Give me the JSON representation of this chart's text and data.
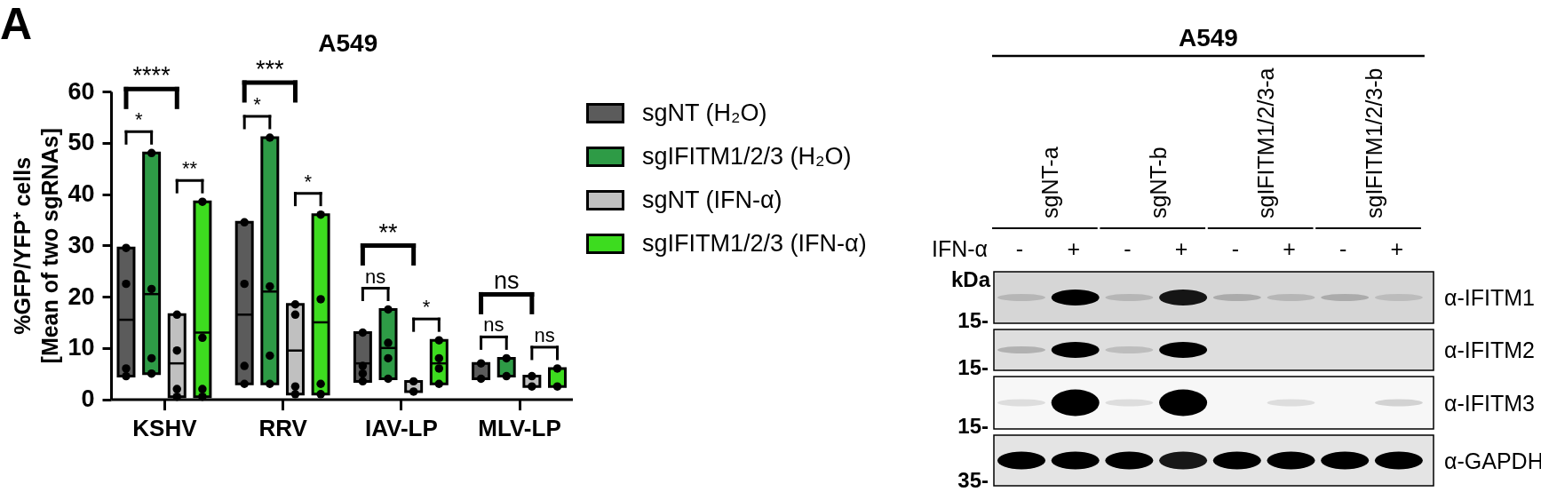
{
  "chart_data": [
    {
      "type": "box",
      "title": "A549",
      "ylabel": "%GFP/YFP⁺ cells\n[Mean of two sgRNAs]",
      "categories": [
        "KSHV",
        "RRV",
        "IAV-LP",
        "MLV-LP"
      ],
      "ylim": [
        0,
        60
      ],
      "yticks": [
        0,
        10,
        20,
        30,
        40,
        50,
        60
      ],
      "legend": "right",
      "marker": "circle",
      "series": [
        {
          "name": "sgNT (H₂O)",
          "color": "#5b5b5b",
          "boxes": [
            {
              "low": 4.5,
              "q1": 4.5,
              "median": null,
              "q3": 29.5,
              "high": 29.5,
              "mean": 15.5
            },
            {
              "low": 3,
              "q1": 3,
              "median": null,
              "q3": 34.5,
              "high": 34.5,
              "mean": 16.5
            },
            {
              "low": 3.5,
              "q1": 3.5,
              "median": null,
              "q3": 13,
              "high": 13,
              "mean": 7
            },
            {
              "low": 4,
              "q1": 4,
              "median": null,
              "q3": 7,
              "high": 7
            }
          ]
        },
        {
          "name": "sgIFITM1/2/3 (H₂O)",
          "color": "#2e9b46",
          "boxes": [
            {
              "low": 5,
              "q1": 5,
              "median": null,
              "q3": 48,
              "high": 48,
              "mean": 20.5
            },
            {
              "low": 3,
              "q1": 3,
              "median": null,
              "q3": 51,
              "high": 51,
              "mean": 21
            },
            {
              "low": 4,
              "q1": 4,
              "median": null,
              "q3": 17.5,
              "high": 17.5,
              "mean": 10
            },
            {
              "low": 4.5,
              "q1": 4.5,
              "median": null,
              "q3": 8,
              "high": 8
            }
          ]
        },
        {
          "name": "sgNT (IFN-α)",
          "color": "#c0c0c0",
          "boxes": [
            {
              "low": 0.5,
              "q1": 0.5,
              "median": null,
              "q3": 16.5,
              "high": 16.5,
              "mean": 7
            },
            {
              "low": 1,
              "q1": 1,
              "median": null,
              "q3": 18.5,
              "high": 18.5,
              "mean": 9.5
            },
            {
              "low": 1.5,
              "q1": 1.5,
              "median": null,
              "q3": 3.5,
              "high": 3.5
            },
            {
              "low": 2.5,
              "q1": 2.5,
              "median": null,
              "q3": 4.5,
              "high": 4.5
            }
          ]
        },
        {
          "name": "sgIFITM1/2/3 (IFN-α)",
          "color": "#3ddc1f",
          "boxes": [
            {
              "low": 0.5,
              "q1": 0.5,
              "median": null,
              "q3": 38.5,
              "high": 38.5,
              "mean": 13
            },
            {
              "low": 1,
              "q1": 1,
              "median": null,
              "q3": 36,
              "high": 36,
              "mean": 15
            },
            {
              "low": 3,
              "q1": 3,
              "median": null,
              "q3": 11.5,
              "high": 11.5,
              "mean": 7
            },
            {
              "low": 2.5,
              "q1": 2.5,
              "median": null,
              "q3": 6,
              "high": 6
            }
          ]
        },
        {
          "type": "scatter",
          "color": "#000000",
          "x": [
            "KSHV",
            "KSHV",
            "KSHV",
            "KSHV",
            "RRV",
            "RRV",
            "RRV",
            "RRV",
            "IAV-LP",
            "IAV-LP",
            "IAV-LP",
            "IAV-LP",
            "MLV-LP",
            "MLV-LP"
          ],
          "values": [
            29.5,
            22.5,
            6,
            4.5,
            34.5,
            22.5,
            6.5,
            3,
            13,
            6.5,
            5,
            3.5,
            7,
            4
          ]
        },
        {
          "type": "scatter",
          "color": "#000000",
          "x": [
            "KSHV",
            "KSHV",
            "KSHV",
            "KSHV",
            "RRV",
            "RRV",
            "RRV",
            "RRV",
            "IAV-LP",
            "IAV-LP",
            "IAV-LP",
            "IAV-LP",
            "MLV-LP",
            "MLV-LP"
          ],
          "values": [
            48,
            21.5,
            8,
            5,
            51,
            22,
            8.5,
            3,
            17.5,
            11,
            8,
            4,
            8,
            4.5
          ]
        },
        {
          "type": "scatter",
          "color": "#000000",
          "x": [
            "KSHV",
            "KSHV",
            "KSHV",
            "KSHV",
            "RRV",
            "RRV",
            "RRV",
            "RRV",
            "IAV-LP",
            "IAV-LP",
            "MLV-LP",
            "MLV-LP"
          ],
          "values": [
            16.5,
            9.5,
            2,
            0.5,
            18.5,
            16.5,
            2.5,
            1,
            3.5,
            1.5,
            4.5,
            2.5
          ]
        },
        {
          "type": "scatter",
          "color": "#000000",
          "x": [
            "KSHV",
            "KSHV",
            "KSHV",
            "KSHV",
            "RRV",
            "RRV",
            "RRV",
            "RRV",
            "IAV-LP",
            "IAV-LP",
            "IAV-LP",
            "IAV-LP",
            "MLV-LP",
            "MLV-LP"
          ],
          "values": [
            38.5,
            12,
            2,
            0.5,
            36,
            19.5,
            3,
            1,
            11.5,
            8,
            6,
            3,
            6,
            2.5
          ]
        }
      ],
      "annotations": [
        "****",
        "*",
        "**",
        "***",
        "*",
        "*",
        "**",
        "ns",
        "*",
        "ns",
        "ns",
        "ns",
        "A"
      ]
    },
    {
      "type": "other",
      "title": "A549",
      "categories": [
        "sgNT-a",
        "sgNT-b",
        "sgIFITM1/2/3-a",
        "sgIFITM1/2/3-b"
      ],
      "y_categories": [
        "α-IFITM1",
        "α-IFITM2",
        "α-IFITM3",
        "α-GAPDH"
      ],
      "annotations": [
        "IFN-α",
        "-",
        "+",
        "-",
        "+",
        "-",
        "+",
        "-",
        "+",
        "kDa",
        "15-",
        "15-",
        "15-",
        "35-"
      ]
    }
  ]
}
